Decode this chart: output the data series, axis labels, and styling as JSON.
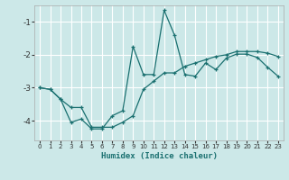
{
  "xlabel": "Humidex (Indice chaleur)",
  "ylabel": "",
  "bg_color": "#cce8e8",
  "grid_color": "#ffffff",
  "line_color": "#1a7070",
  "xlim": [
    -0.5,
    23.5
  ],
  "ylim": [
    -4.6,
    -0.5
  ],
  "yticks": [
    -4,
    -3,
    -2,
    -1
  ],
  "xticks": [
    0,
    1,
    2,
    3,
    4,
    5,
    6,
    7,
    8,
    9,
    10,
    11,
    12,
    13,
    14,
    15,
    16,
    17,
    18,
    19,
    20,
    21,
    22,
    23
  ],
  "series1_x": [
    0,
    1,
    2,
    3,
    4,
    5,
    6,
    7,
    8,
    9,
    10,
    11,
    12,
    13,
    14,
    15,
    16,
    17,
    18,
    19,
    20,
    21,
    22,
    23
  ],
  "series1_y": [
    -3.0,
    -3.05,
    -3.35,
    -4.05,
    -3.95,
    -4.25,
    -4.25,
    -3.85,
    -3.7,
    -1.75,
    -2.6,
    -2.6,
    -0.65,
    -1.4,
    -2.6,
    -2.65,
    -2.25,
    -2.45,
    -2.1,
    -1.98,
    -1.98,
    -2.08,
    -2.38,
    -2.65
  ],
  "series2_x": [
    0,
    1,
    2,
    3,
    4,
    5,
    6,
    7,
    8,
    9,
    10,
    11,
    12,
    13,
    14,
    15,
    16,
    17,
    18,
    19,
    20,
    21,
    22,
    23
  ],
  "series2_y": [
    -3.0,
    -3.05,
    -3.35,
    -3.6,
    -3.6,
    -4.2,
    -4.2,
    -4.2,
    -4.05,
    -3.85,
    -3.05,
    -2.8,
    -2.55,
    -2.55,
    -2.35,
    -2.25,
    -2.15,
    -2.05,
    -2.0,
    -1.9,
    -1.9,
    -1.9,
    -1.95,
    -2.05
  ]
}
